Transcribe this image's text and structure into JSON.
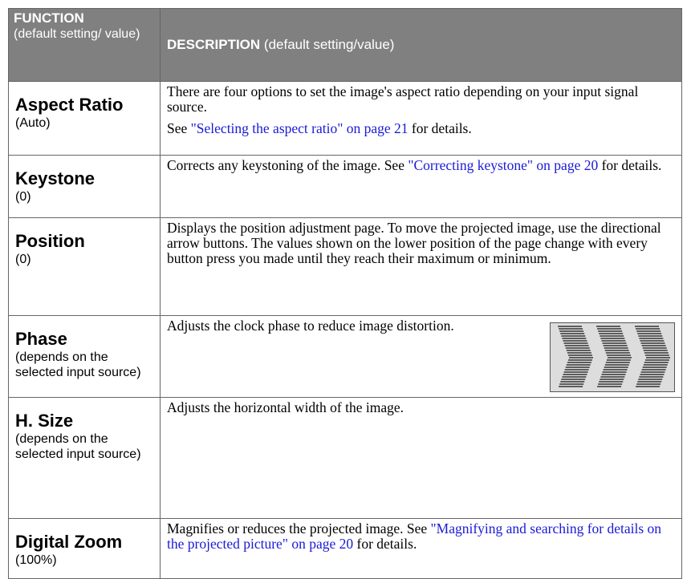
{
  "table": {
    "header": {
      "function": "FUNCTION",
      "function_note": "(default setting/ value)",
      "description": "DESCRIPTION",
      "description_note": "(default setting/value)"
    },
    "rows": [
      {
        "name": "Aspect Ratio",
        "default": "(Auto)",
        "description": [
          [
            {
              "text": "There are four options to set the image's aspect ratio depending on your input signal source."
            }
          ],
          [
            {
              "text": "See "
            },
            {
              "link": "\"Selecting the aspect ratio\" on page 21"
            },
            {
              "text": " for details."
            }
          ]
        ]
      },
      {
        "name": "Keystone",
        "default": "(0)",
        "description": [
          [
            {
              "text": "Corrects any keystoning of the image. See "
            },
            {
              "link": "\"Correcting keystone\" on page 20"
            },
            {
              "text": " for details."
            }
          ]
        ]
      },
      {
        "name": "Position",
        "default": "(0)",
        "description": [
          [
            {
              "text": "Displays the position adjustment page. To move the projected image, use the directional arrow buttons. The values shown on the lower position of the page change with every button press you made until they reach their maximum or minimum."
            }
          ]
        ]
      },
      {
        "name": "Phase",
        "default": "(depends on the selected input source)",
        "description": [
          [
            {
              "text": "Adjusts the clock phase to reduce image distortion."
            }
          ]
        ]
      },
      {
        "name": "H. Size",
        "default": "(depends on the selected input source)",
        "description": [
          [
            {
              "text": "Adjusts the horizontal width of the image."
            }
          ]
        ]
      },
      {
        "name": "Digital Zoom",
        "default": "(100%)",
        "description": [
          [
            {
              "text": "Magnifies or reduces the projected image. See "
            },
            {
              "link": "\"Magnifying and searching for details on the projected picture\" on page 20"
            },
            {
              "text": " for details."
            }
          ]
        ]
      }
    ]
  }
}
